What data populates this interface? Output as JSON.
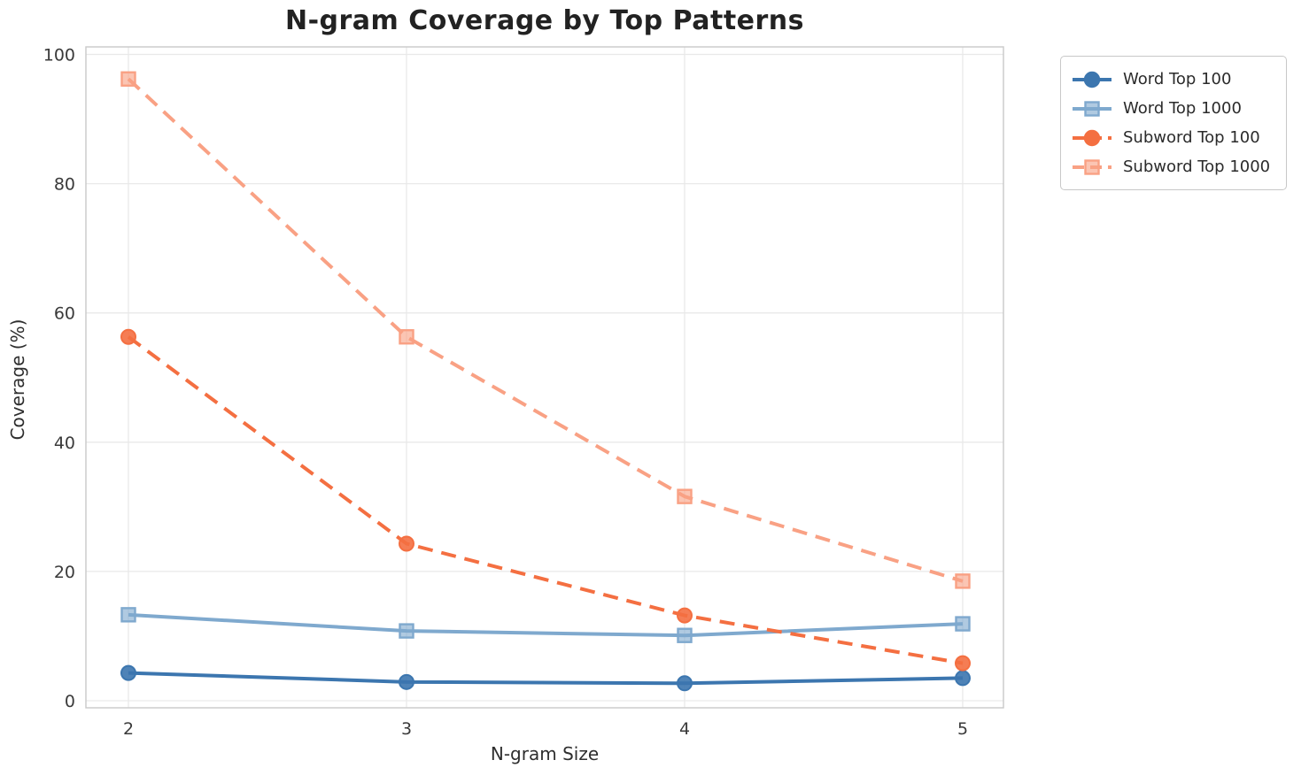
{
  "chart_data": {
    "type": "line",
    "title": "N-gram Coverage by Top Patterns",
    "xlabel": "N-gram Size",
    "ylabel": "Coverage (%)",
    "x": [
      2,
      3,
      4,
      5
    ],
    "xticks": [
      "2",
      "3",
      "4",
      "5"
    ],
    "yticks": [
      0,
      20,
      40,
      60,
      80,
      100
    ],
    "ylim": [
      0,
      100
    ],
    "grid": true,
    "legend_position": "outside upper right",
    "series": [
      {
        "name": "Word Top 100",
        "values": [
          4.3,
          2.9,
          2.7,
          3.5
        ],
        "color": "#3c76af",
        "linestyle": "solid",
        "marker": "circle"
      },
      {
        "name": "Word Top 1000",
        "values": [
          13.3,
          10.8,
          10.1,
          11.9
        ],
        "color": "#7fa9ce",
        "linestyle": "solid",
        "marker": "square"
      },
      {
        "name": "Subword Top 100",
        "values": [
          56.3,
          24.3,
          13.2,
          5.8
        ],
        "color": "#f46f41",
        "linestyle": "dashed",
        "marker": "circle"
      },
      {
        "name": "Subword Top 1000",
        "values": [
          96.2,
          56.3,
          31.6,
          18.5
        ],
        "color": "#f9a184",
        "linestyle": "dashed",
        "marker": "square"
      }
    ],
    "style": {
      "grid_color": "#e9e9e9",
      "spine_color": "#c9c9c9",
      "tick_label_color": "#3a3a3a",
      "title_color": "#222222"
    }
  }
}
